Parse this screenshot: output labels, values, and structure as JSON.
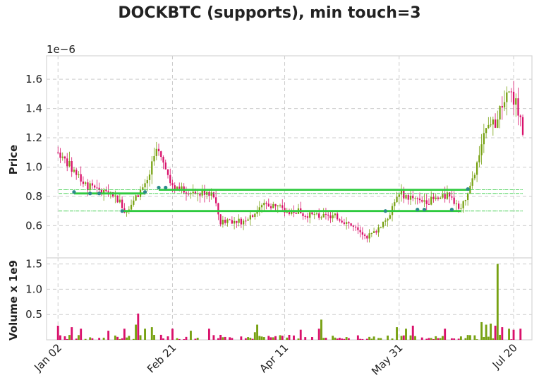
{
  "chart_data": {
    "type": "candlestick",
    "title": "DOCKBTC (supports), min touch=3",
    "price_panel": {
      "ylabel": "Price",
      "offset_label": "1e−6",
      "yticks": [
        "0.6",
        "0.8",
        "1.0",
        "1.2",
        "1.4",
        "1.6"
      ],
      "ylim": [
        0.38,
        1.76
      ],
      "unit_scale": "1e-6"
    },
    "volume_panel": {
      "ylabel": "Volume x 1e9",
      "yticks": [
        "0.5",
        "1.0",
        "1.5"
      ],
      "ylim": [
        0,
        1.62
      ]
    },
    "x_ticklabels": [
      "Jan 02",
      "Feb 21",
      "Apr 11",
      "May 31",
      "Jul 20"
    ],
    "x_tick_days": [
      0,
      50,
      99,
      149,
      199
    ],
    "x_range_days": [
      -5,
      207
    ],
    "grid": true,
    "colors": {
      "up": "#77a112",
      "down": "#d9116b",
      "support": "#2eca3f",
      "touch": "#2d8a8a",
      "grid": "#cccccc"
    },
    "anchors": [
      [
        0,
        1.1
      ],
      [
        4,
        1.03
      ],
      [
        8,
        0.95
      ],
      [
        13,
        0.87
      ],
      [
        18,
        0.83
      ],
      [
        23,
        0.83
      ],
      [
        27,
        0.76
      ],
      [
        29,
        0.7
      ],
      [
        33,
        0.76
      ],
      [
        36,
        0.84
      ],
      [
        39,
        0.9
      ],
      [
        43,
        1.12
      ],
      [
        46,
        1.02
      ],
      [
        50,
        0.87
      ],
      [
        55,
        0.85
      ],
      [
        60,
        0.8
      ],
      [
        65,
        0.84
      ],
      [
        68,
        0.8
      ],
      [
        71,
        0.62
      ],
      [
        74,
        0.64
      ],
      [
        80,
        0.63
      ],
      [
        86,
        0.69
      ],
      [
        90,
        0.76
      ],
      [
        95,
        0.73
      ],
      [
        100,
        0.7
      ],
      [
        105,
        0.7
      ],
      [
        110,
        0.67
      ],
      [
        116,
        0.66
      ],
      [
        122,
        0.66
      ],
      [
        128,
        0.6
      ],
      [
        134,
        0.52
      ],
      [
        138,
        0.55
      ],
      [
        144,
        0.66
      ],
      [
        147,
        0.76
      ],
      [
        150,
        0.82
      ],
      [
        154,
        0.79
      ],
      [
        158,
        0.78
      ],
      [
        162,
        0.77
      ],
      [
        166,
        0.78
      ],
      [
        170,
        0.8
      ],
      [
        174,
        0.76
      ],
      [
        176,
        0.72
      ],
      [
        178,
        0.77
      ],
      [
        180,
        0.85
      ],
      [
        182,
        0.95
      ],
      [
        184,
        1.1
      ],
      [
        186,
        1.2
      ],
      [
        188,
        1.25
      ],
      [
        191,
        1.3
      ],
      [
        194,
        1.42
      ],
      [
        197,
        1.48
      ],
      [
        200,
        1.45
      ],
      [
        202,
        1.3
      ],
      [
        203,
        1.2
      ]
    ],
    "volume_spikes": [
      [
        0,
        0.28
      ],
      [
        6,
        0.25
      ],
      [
        10,
        0.22
      ],
      [
        22,
        0.18
      ],
      [
        29,
        0.22
      ],
      [
        34,
        0.3
      ],
      [
        35,
        0.52
      ],
      [
        38,
        0.22
      ],
      [
        41,
        0.25
      ],
      [
        50,
        0.22
      ],
      [
        58,
        0.18
      ],
      [
        66,
        0.22
      ],
      [
        86,
        0.15
      ],
      [
        87,
        0.3
      ],
      [
        106,
        0.2
      ],
      [
        114,
        0.22
      ],
      [
        115,
        0.4
      ],
      [
        148,
        0.25
      ],
      [
        152,
        0.22
      ],
      [
        155,
        0.28
      ],
      [
        169,
        0.22
      ],
      [
        185,
        0.35
      ],
      [
        187,
        0.3
      ],
      [
        189,
        0.32
      ],
      [
        191,
        0.28
      ],
      [
        192,
        1.5
      ],
      [
        194,
        0.25
      ],
      [
        197,
        0.22
      ],
      [
        199,
        0.2
      ],
      [
        202,
        0.22
      ]
    ],
    "support_lines": [
      {
        "level": 0.845,
        "from_day": 44,
        "to_day": 180,
        "extended_from_day": -1,
        "extended_to_day": 203
      },
      {
        "level": 0.82,
        "from_day": 7,
        "to_day": 38,
        "extended_from_day": -1,
        "extended_to_day": 203
      },
      {
        "level": 0.7,
        "from_day": 28,
        "to_day": 176,
        "extended_from_day": -1,
        "extended_to_day": 203
      }
    ],
    "touch_points": [
      [
        7,
        0.83
      ],
      [
        14,
        0.82
      ],
      [
        18,
        0.82
      ],
      [
        28,
        0.7
      ],
      [
        38,
        0.83
      ],
      [
        44,
        0.86
      ],
      [
        47,
        0.86
      ],
      [
        143,
        0.7
      ],
      [
        157,
        0.71
      ],
      [
        160,
        0.71
      ],
      [
        172,
        0.71
      ],
      [
        179,
        0.85
      ]
    ]
  }
}
